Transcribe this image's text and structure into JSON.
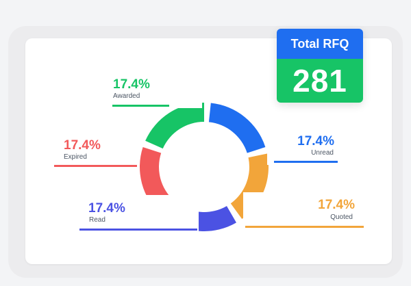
{
  "title": "Total RFQ",
  "total": "281",
  "colors": {
    "awarded": "#17c466",
    "unread": "#1f6ef0",
    "quoted": "#f2a53a",
    "read": "#4b52e3",
    "expired": "#f2595a"
  },
  "chart_data": {
    "type": "pie",
    "labels": [
      "Awarded",
      "Unread",
      "Quoted",
      "Read",
      "Expired"
    ],
    "values": [
      17.4,
      17.4,
      17.4,
      17.4,
      17.4
    ],
    "value_labels": [
      "17.4%",
      "17.4%",
      "17.4%",
      "17.4%",
      "17.4%"
    ],
    "colors": [
      "#17c466",
      "#1f6ef0",
      "#f2a53a",
      "#4b52e3",
      "#f2595a"
    ],
    "donut": true
  }
}
